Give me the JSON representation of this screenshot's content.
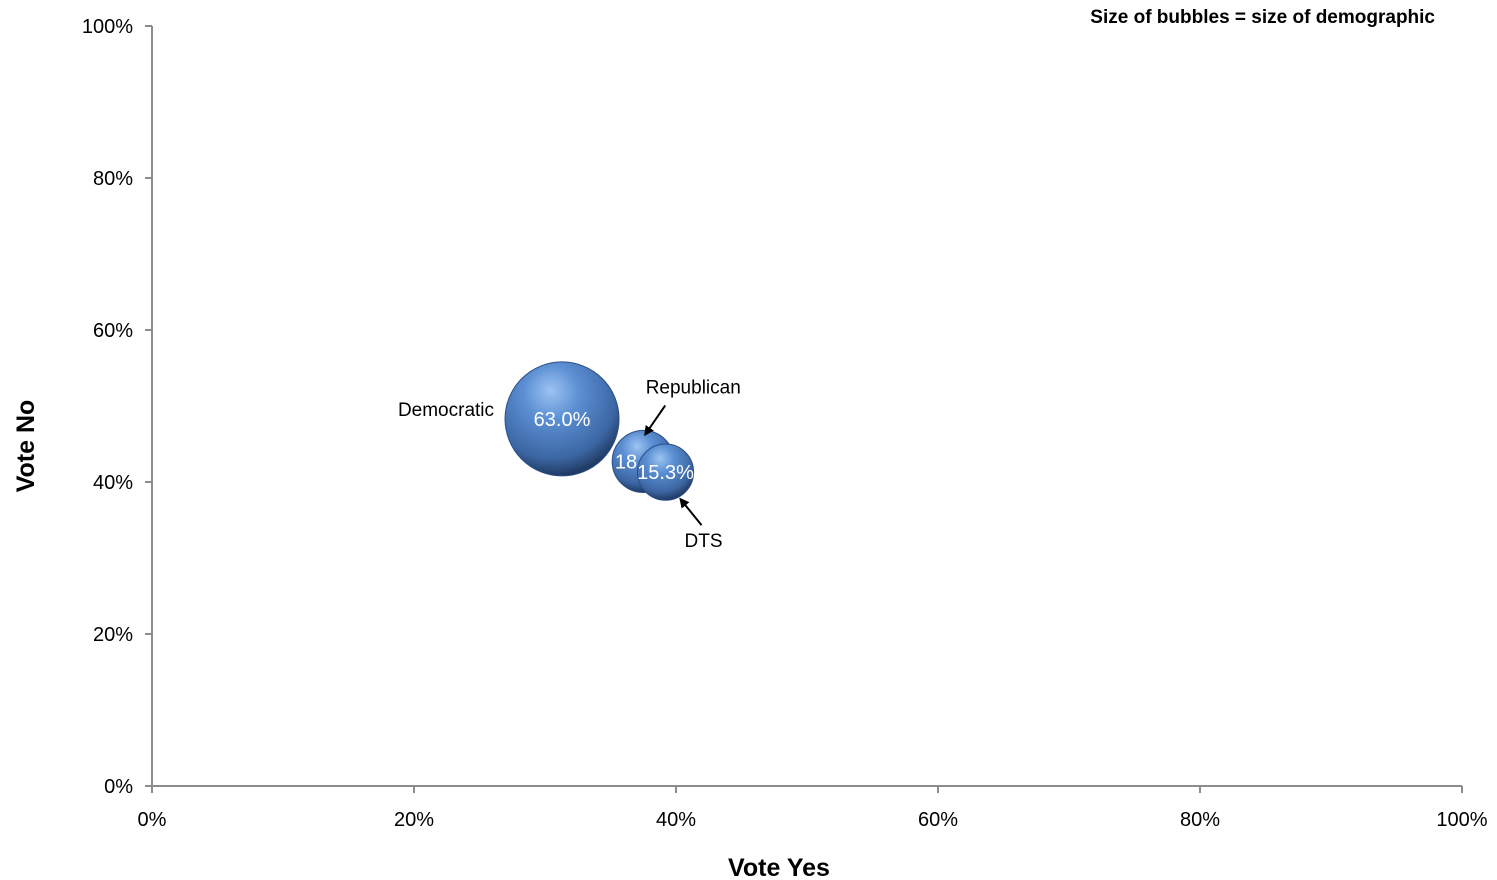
{
  "chart_data": {
    "type": "scatter",
    "subtype": "bubble",
    "title": "",
    "note": "Size of bubbles =  size of demographic",
    "xlabel": "Vote Yes",
    "ylabel": "Vote No",
    "xlim": [
      0,
      100
    ],
    "ylim": [
      0,
      100
    ],
    "x_ticks": [
      "0%",
      "20%",
      "40%",
      "60%",
      "80%",
      "100%"
    ],
    "y_ticks": [
      "0%",
      "20%",
      "40%",
      "60%",
      "80%",
      "100%"
    ],
    "grid": false,
    "bubble_color": "#4a7bbf",
    "points": [
      {
        "category": "Democratic",
        "x": 31.3,
        "y": 48.3,
        "size": 63.0,
        "label": "63.0%"
      },
      {
        "category": "Republican",
        "x": 37.5,
        "y": 42.7,
        "size": 18.7,
        "label": "18.7%"
      },
      {
        "category": "DTS",
        "x": 39.2,
        "y": 41.3,
        "size": 15.3,
        "label": "15.3%"
      }
    ]
  }
}
